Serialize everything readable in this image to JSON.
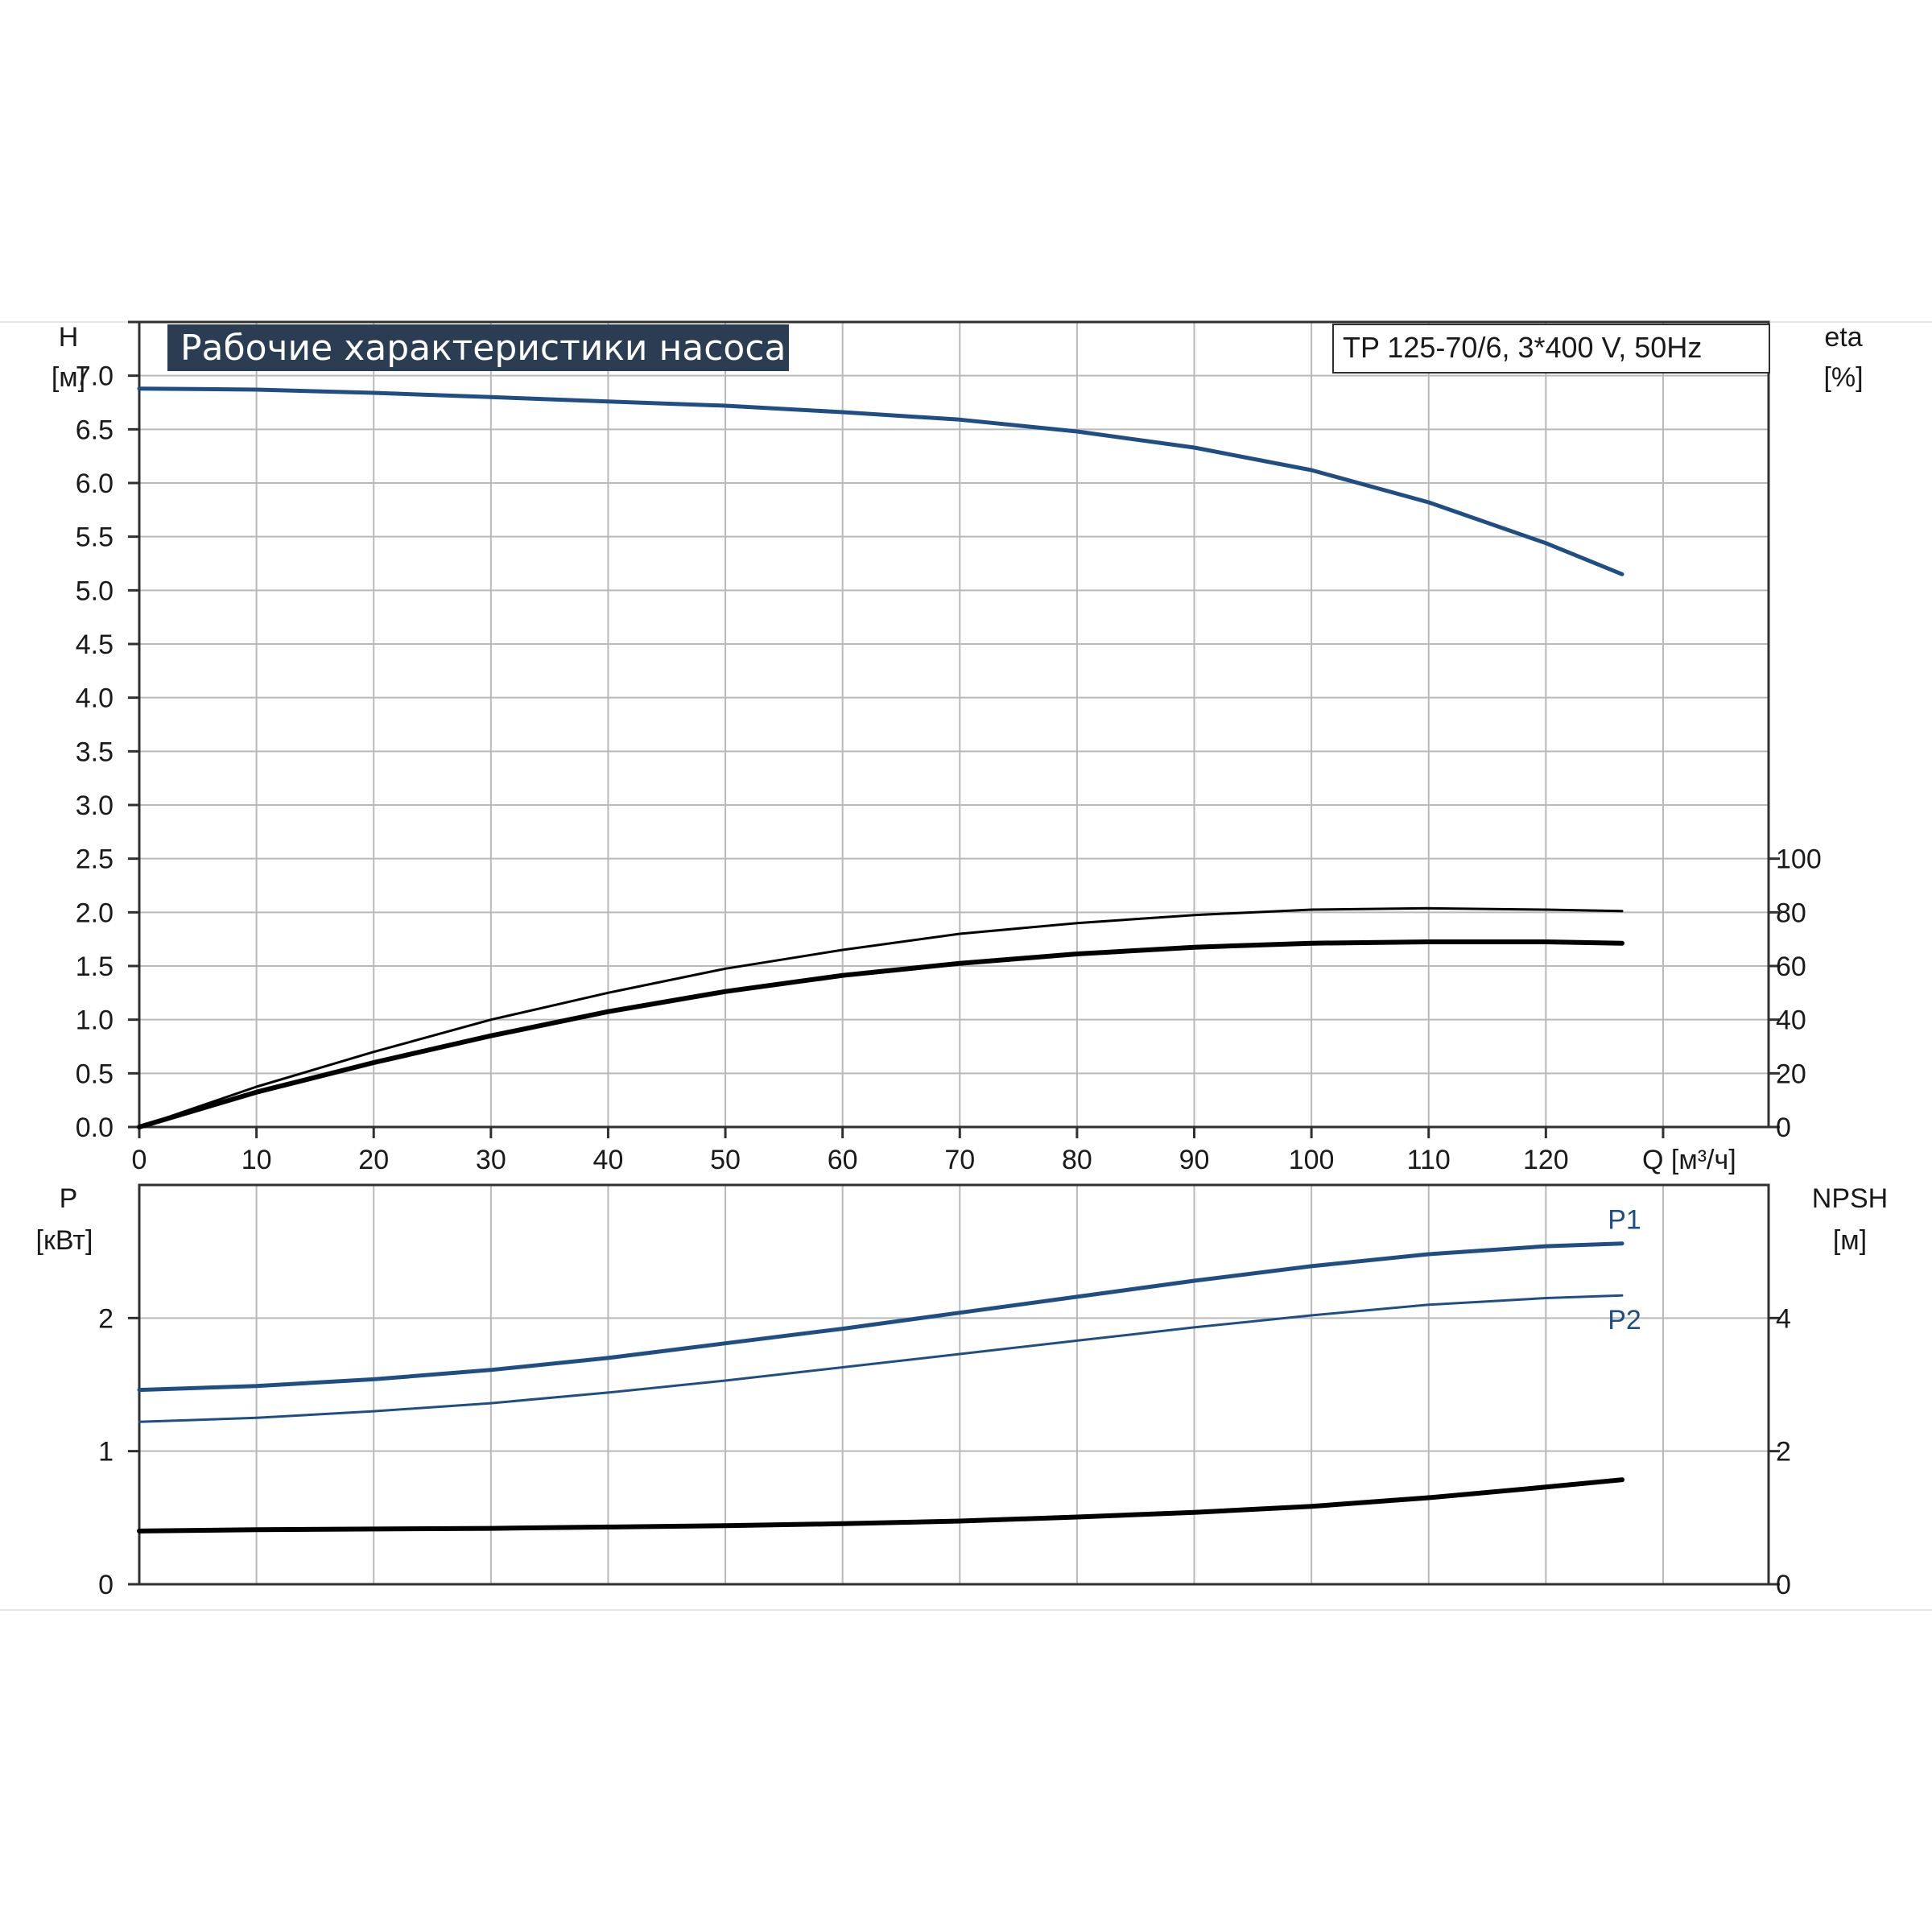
{
  "chart_data": [
    {
      "type": "line",
      "title": "Рабочие характеристики насоса",
      "subtitle": "TP 125-70/6, 3*400 V, 50Hz",
      "xlabel": "Q [м³/ч]",
      "x_ticks": [
        "0",
        "10",
        "20",
        "30",
        "40",
        "50",
        "60",
        "70",
        "80",
        "90",
        "100",
        "110",
        "120"
      ],
      "xlim": [
        0,
        139
      ],
      "ylabel": "H",
      "ylabel_unit": "[м]",
      "y_ticks": [
        "0.0",
        "0.5",
        "1.0",
        "1.5",
        "2.0",
        "2.5",
        "3.0",
        "3.5",
        "4.0",
        "4.5",
        "5.0",
        "5.5",
        "6.0",
        "6.5",
        "7.0"
      ],
      "ylim": [
        0,
        7.5
      ],
      "y2label": "eta",
      "y2label_unit": "[%]",
      "y2_ticks": [
        "0",
        "20",
        "40",
        "60",
        "80",
        "100"
      ],
      "y2lim": [
        0,
        100
      ],
      "grid": true,
      "series": [
        {
          "axis": "left",
          "color": "#1f4e85",
          "width": 5,
          "x": [
            0,
            10,
            20,
            30,
            40,
            50,
            60,
            70,
            80,
            90,
            100,
            110,
            120,
            126.5
          ],
          "y": [
            6.88,
            6.87,
            6.84,
            6.8,
            6.76,
            6.72,
            6.66,
            6.59,
            6.48,
            6.33,
            6.12,
            5.82,
            5.44,
            5.15
          ]
        },
        {
          "axis": "right",
          "color": "#000000",
          "width": 3,
          "x": [
            0,
            10,
            20,
            30,
            40,
            50,
            60,
            70,
            80,
            90,
            100,
            110,
            120,
            126.5
          ],
          "y": [
            0,
            15,
            28,
            40,
            50,
            59,
            66,
            72,
            76,
            79,
            81,
            81.5,
            81,
            80.5
          ]
        },
        {
          "axis": "right",
          "color": "#000000",
          "width": 6,
          "x": [
            0,
            10,
            20,
            30,
            40,
            50,
            60,
            70,
            80,
            90,
            100,
            110,
            120,
            126.5
          ],
          "y": [
            0,
            13,
            24,
            34,
            43,
            50.5,
            56.5,
            61,
            64.5,
            67,
            68.5,
            69,
            69,
            68.5
          ]
        }
      ]
    },
    {
      "type": "line",
      "xlim": [
        0,
        139
      ],
      "ylabel": "P",
      "ylabel_unit": "[кВт]",
      "y_ticks": [
        "0",
        "1",
        "2"
      ],
      "ylim": [
        0,
        3
      ],
      "y2label": "NPSH",
      "y2label_unit": "[м]",
      "y2_ticks": [
        "0",
        "2",
        "4"
      ],
      "y2lim": [
        0,
        6
      ],
      "grid": true,
      "series": [
        {
          "name": "P1",
          "axis": "left",
          "color": "#1f4e85",
          "width": 5,
          "x": [
            0,
            10,
            20,
            30,
            40,
            50,
            60,
            70,
            80,
            90,
            100,
            110,
            120,
            126.5
          ],
          "y": [
            1.46,
            1.49,
            1.54,
            1.61,
            1.7,
            1.81,
            1.92,
            2.04,
            2.16,
            2.28,
            2.39,
            2.48,
            2.54,
            2.56
          ]
        },
        {
          "name": "P2",
          "axis": "left",
          "color": "#1f4e85",
          "width": 3,
          "x": [
            0,
            10,
            20,
            30,
            40,
            50,
            60,
            70,
            80,
            90,
            100,
            110,
            120,
            126.5
          ],
          "y": [
            1.22,
            1.25,
            1.3,
            1.36,
            1.44,
            1.53,
            1.63,
            1.73,
            1.83,
            1.93,
            2.02,
            2.1,
            2.15,
            2.17
          ]
        },
        {
          "axis": "right",
          "color": "#000000",
          "width": 6,
          "x": [
            0,
            10,
            20,
            30,
            40,
            50,
            60,
            70,
            80,
            90,
            100,
            110,
            120,
            126.5
          ],
          "y": [
            0.8,
            0.82,
            0.83,
            0.84,
            0.86,
            0.88,
            0.91,
            0.95,
            1.01,
            1.08,
            1.17,
            1.3,
            1.46,
            1.57
          ]
        }
      ]
    }
  ]
}
